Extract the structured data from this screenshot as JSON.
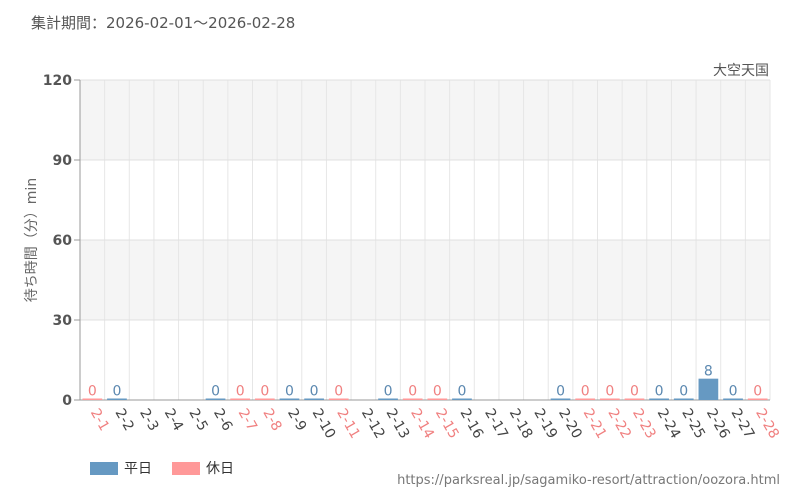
{
  "header": {
    "period_label": "集計期間：2026-02-01～2026-02-28",
    "attraction_name": "大空天国"
  },
  "legend": {
    "weekday_label": "平日",
    "holiday_label": "休日"
  },
  "footer": {
    "url": "https://parksreal.jp/sagamiko-resort/attraction/oozora.html"
  },
  "colors": {
    "weekday": "#6699c2",
    "holiday": "#ff9999",
    "weekday_text": "#5b88b0",
    "holiday_text": "#f08080"
  },
  "chart_data": {
    "type": "bar",
    "ylabel": "待ち時間（分）min",
    "ylim": [
      0,
      120
    ],
    "yticks": [
      0,
      30,
      60,
      90,
      120
    ],
    "grid": true,
    "legend_position": "bottom-left",
    "categories": [
      "2-1",
      "2-2",
      "2-3",
      "2-4",
      "2-5",
      "2-6",
      "2-7",
      "2-8",
      "2-9",
      "2-10",
      "2-11",
      "2-12",
      "2-13",
      "2-14",
      "2-15",
      "2-16",
      "2-17",
      "2-18",
      "2-19",
      "2-20",
      "2-21",
      "2-22",
      "2-23",
      "2-24",
      "2-25",
      "2-26",
      "2-27",
      "2-28"
    ],
    "day_types": [
      "holiday",
      "weekday",
      "weekday",
      "weekday",
      "weekday",
      "weekday",
      "holiday",
      "holiday",
      "weekday",
      "weekday",
      "holiday",
      "weekday",
      "weekday",
      "holiday",
      "holiday",
      "weekday",
      "weekday",
      "weekday",
      "weekday",
      "weekday",
      "holiday",
      "holiday",
      "holiday",
      "weekday",
      "weekday",
      "weekday",
      "weekday",
      "holiday"
    ],
    "values": [
      0,
      0,
      null,
      null,
      null,
      0,
      0,
      0,
      0,
      0,
      0,
      null,
      0,
      0,
      0,
      0,
      null,
      null,
      null,
      0,
      0,
      0,
      0,
      0,
      0,
      8,
      0,
      0
    ]
  }
}
